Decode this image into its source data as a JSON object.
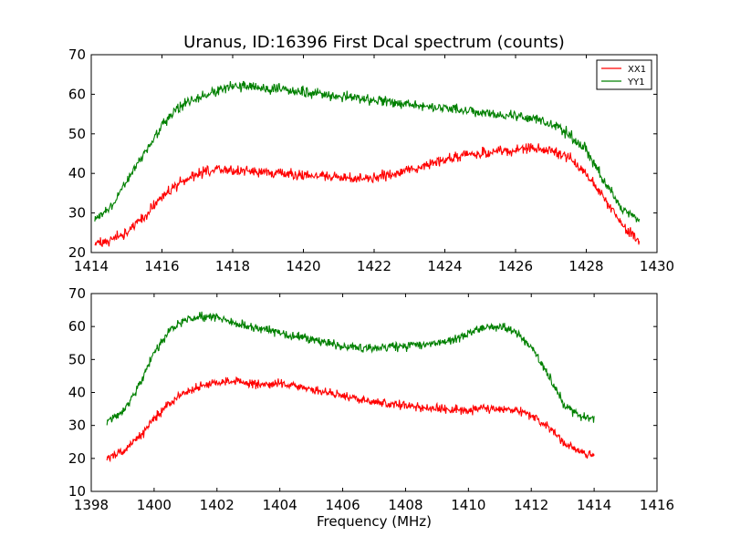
{
  "chart_data": [
    {
      "type": "line",
      "title": "Uranus, ID:16396 First Dcal spectrum (counts)",
      "xlabel": "",
      "ylabel": "",
      "xlim": [
        1414,
        1430
      ],
      "ylim": [
        20,
        70
      ],
      "xticks": [
        1414,
        1416,
        1418,
        1420,
        1422,
        1424,
        1426,
        1428,
        1430
      ],
      "yticks": [
        20,
        30,
        40,
        50,
        60,
        70
      ],
      "grid": false,
      "legend": {
        "position": "top-right",
        "entries": [
          "XX1",
          "YY1"
        ]
      },
      "series": [
        {
          "name": "XX1",
          "color": "#ff0000",
          "x": [
            1414.1,
            1414.5,
            1415.0,
            1415.5,
            1416.0,
            1416.5,
            1417.0,
            1417.5,
            1418.0,
            1418.5,
            1419.0,
            1419.5,
            1420.0,
            1420.5,
            1421.0,
            1421.5,
            1422.0,
            1422.5,
            1423.0,
            1423.5,
            1424.0,
            1424.5,
            1425.0,
            1425.5,
            1426.0,
            1426.5,
            1427.0,
            1427.5,
            1428.0,
            1428.5,
            1429.0,
            1429.5
          ],
          "y": [
            22,
            23,
            25,
            29,
            34,
            37.5,
            39.5,
            41,
            41,
            40.5,
            40,
            40,
            39.5,
            39.5,
            39,
            38.5,
            39,
            40,
            41,
            42,
            43.5,
            44.5,
            45,
            45.5,
            46,
            46.5,
            46,
            44,
            40,
            34,
            27,
            23
          ]
        },
        {
          "name": "YY1",
          "color": "#008000",
          "x": [
            1414.1,
            1414.5,
            1415.0,
            1415.5,
            1416.0,
            1416.5,
            1417.0,
            1417.5,
            1418.0,
            1418.5,
            1419.0,
            1419.5,
            1420.0,
            1420.5,
            1421.0,
            1421.5,
            1422.0,
            1422.5,
            1423.0,
            1423.5,
            1424.0,
            1424.5,
            1425.0,
            1425.5,
            1426.0,
            1426.5,
            1427.0,
            1427.5,
            1428.0,
            1428.5,
            1429.0,
            1429.5
          ],
          "y": [
            28,
            31,
            38,
            45,
            52,
            57,
            59,
            61,
            62,
            62,
            61.5,
            61,
            60.5,
            60,
            59.5,
            59,
            58.5,
            58,
            57.5,
            57,
            56.5,
            56,
            55.5,
            55,
            54.5,
            54,
            52.5,
            50,
            46,
            38,
            31,
            28
          ]
        }
      ]
    },
    {
      "type": "line",
      "title": "",
      "xlabel": "Frequency (MHz)",
      "ylabel": "",
      "xlim": [
        1398,
        1416
      ],
      "ylim": [
        10,
        70
      ],
      "xticks": [
        1398,
        1400,
        1402,
        1404,
        1406,
        1408,
        1410,
        1412,
        1414,
        1416
      ],
      "yticks": [
        10,
        20,
        30,
        40,
        50,
        60,
        70
      ],
      "grid": false,
      "series": [
        {
          "color": "#ff0000",
          "x": [
            1398.5,
            1399.0,
            1399.5,
            1400.0,
            1400.5,
            1401.0,
            1401.5,
            1402.0,
            1402.5,
            1403.0,
            1403.5,
            1404.0,
            1404.5,
            1405.0,
            1405.5,
            1406.0,
            1406.5,
            1407.0,
            1407.5,
            1408.0,
            1408.5,
            1409.0,
            1409.5,
            1410.0,
            1410.5,
            1411.0,
            1411.5,
            1412.0,
            1412.5,
            1413.0,
            1413.5,
            1414.0
          ],
          "y": [
            20,
            22,
            26,
            32,
            37,
            40,
            42,
            43,
            43.5,
            43,
            42.5,
            42.5,
            42,
            41,
            40,
            39,
            38,
            37,
            36.5,
            36,
            35.5,
            35,
            35,
            34.5,
            35,
            35,
            34.5,
            33,
            30,
            25,
            22,
            21
          ]
        },
        {
          "color": "#008000",
          "x": [
            1398.5,
            1399.0,
            1399.5,
            1400.0,
            1400.5,
            1401.0,
            1401.5,
            1402.0,
            1402.5,
            1403.0,
            1403.5,
            1404.0,
            1404.5,
            1405.0,
            1405.5,
            1406.0,
            1406.5,
            1407.0,
            1407.5,
            1408.0,
            1408.5,
            1409.0,
            1409.5,
            1410.0,
            1410.5,
            1411.0,
            1411.5,
            1412.0,
            1412.5,
            1413.0,
            1413.5,
            1414.0
          ],
          "y": [
            31,
            34,
            42,
            52,
            59,
            62,
            63,
            63,
            61,
            60,
            59,
            58,
            57,
            56,
            55,
            54,
            53.5,
            53.5,
            54,
            54,
            54.5,
            55,
            56,
            58,
            59.5,
            60,
            58.5,
            54,
            46,
            37,
            33,
            32
          ]
        }
      ]
    }
  ]
}
